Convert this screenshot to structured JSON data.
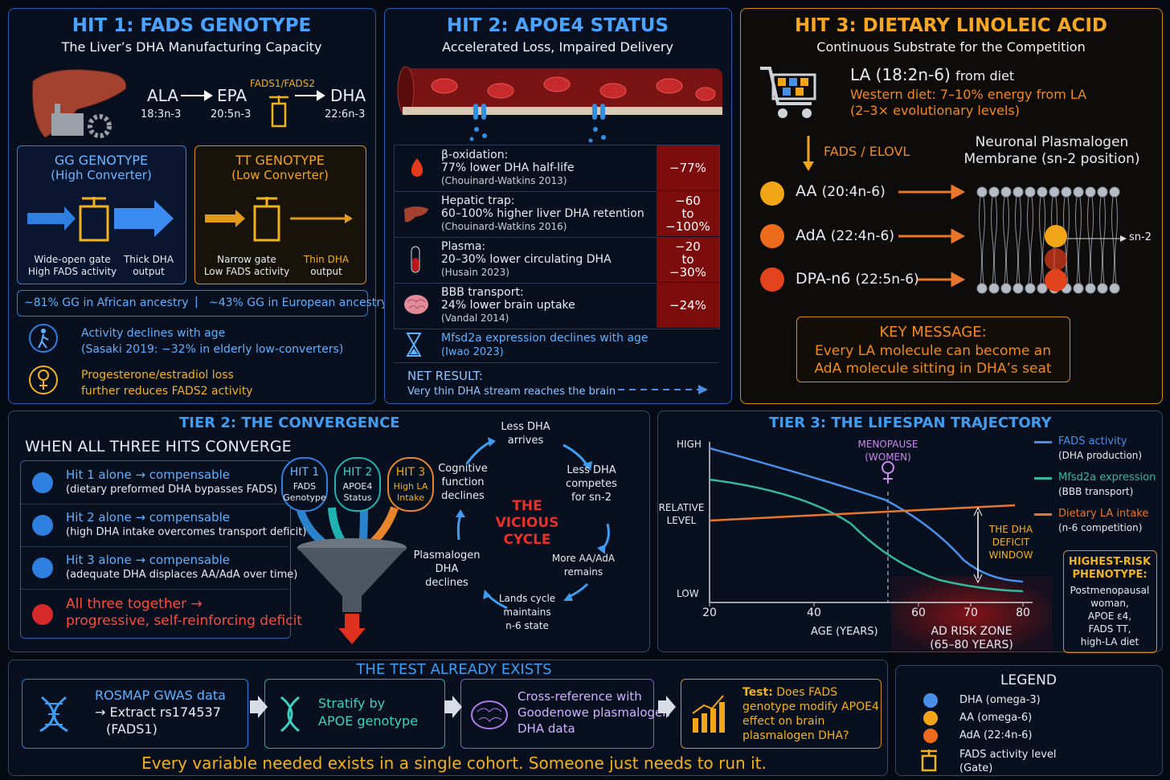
{
  "hit1": {
    "title": "HIT 1: FADS GENOTYPE",
    "subtitle": "The Liver’s DHA Manufacturing Capacity",
    "pathway": [
      {
        "name": "ALA",
        "formula": "18:3n-3"
      },
      {
        "name": "EPA",
        "formula": "20:5n-3"
      },
      {
        "name": "DHA",
        "formula": "22:6n-3"
      }
    ],
    "enzyme": "FADS1/FADS2",
    "genotypes": [
      {
        "title": "GG GENOTYPE",
        "subtitle": "(High Converter)",
        "gate": [
          "Wide-open gate",
          "High FADS activity"
        ],
        "output": [
          "Thick DHA",
          "output"
        ]
      },
      {
        "title": "TT GENOTYPE",
        "subtitle": "(Low Converter)",
        "gate": [
          "Narrow gate",
          "Low FADS activity"
        ],
        "output": [
          "Thin DHA",
          "output"
        ]
      }
    ],
    "ancestry": [
      "~81% GG in African ancestry",
      "~43% GG in European ancestry"
    ],
    "notes": [
      {
        "main": "Activity declines with age",
        "sub": "(Sasaki 2019: −32% in elderly low-converters)"
      },
      {
        "main": "Progesterone/estradiol loss",
        "sub": "further reduces FADS2 activity"
      }
    ]
  },
  "hit2": {
    "title": "HIT 2: APOE4 STATUS",
    "subtitle": "Accelerated Loss, Impaired Delivery",
    "rows": [
      {
        "label": "β-oxidation:",
        "desc": "77% lower DHA half-life",
        "cite": "(Chouinard-Watkins 2013)",
        "effect": [
          "−77%"
        ]
      },
      {
        "label": "Hepatic trap:",
        "desc": "60–100% higher liver DHA retention",
        "cite": "(Chouinard-Watkins 2016)",
        "effect": [
          "−60",
          "to",
          "−100%"
        ]
      },
      {
        "label": "Plasma:",
        "desc": "20–30% lower circulating DHA",
        "cite": "(Husain 2023)",
        "effect": [
          "−20",
          "to",
          "−30%"
        ]
      },
      {
        "label": "BBB transport:",
        "desc": "24% lower brain uptake",
        "cite": "(Vandal 2014)",
        "effect": [
          "−24%"
        ]
      }
    ],
    "note": {
      "main": "Mfsd2a expression declines with age",
      "sub": "(Iwao 2023)"
    },
    "net": {
      "label": "NET RESULT:",
      "text": "Very thin DHA stream reaches the brain"
    }
  },
  "hit3": {
    "title": "HIT 3: DIETARY LINOLEIC ACID",
    "subtitle": "Continuous Substrate for the Competition",
    "la": "LA (18:2n-6)",
    "la_source": "from diet",
    "western": [
      "Western diet: 7–10% energy from LA",
      "(2–3× evolutionary levels)"
    ],
    "enzyme": "FADS / ELOVL",
    "membrane": [
      "Neuronal Plasmalogen",
      "Membrane (sn-2 position)"
    ],
    "sn2": "sn-2",
    "products": [
      {
        "name": "AA",
        "formula": "(20:4n-6)",
        "color": "#f2a516"
      },
      {
        "name": "AdA",
        "formula": "(22:4n-6)",
        "color": "#ec6a1c"
      },
      {
        "name": "DPA-n6",
        "formula": "(22:5n-6)",
        "color": "#e2421c"
      }
    ],
    "key": {
      "title": "KEY MESSAGE:",
      "lines": [
        "Every LA molecule can become an",
        "AdA molecule sitting in DHA’s seat"
      ]
    }
  },
  "tier2": {
    "title": "TIER 2:  THE CONVERGENCE",
    "heading": "WHEN ALL THREE HITS CONVERGE",
    "items": [
      {
        "main": "Hit 1 alone → compensable",
        "sub": "(dietary preformed DHA bypasses FADS)"
      },
      {
        "main": "Hit 2 alone → compensable",
        "sub": "(high DHA intake overcomes transport deficit)"
      },
      {
        "main": "Hit 3 alone → compensable",
        "sub": "(adequate DHA displaces AA/AdA over time)"
      }
    ],
    "all_three": [
      "All three together →",
      "progressive, self-reinforcing deficit"
    ],
    "hits": [
      {
        "name": "HIT 1",
        "lines": [
          "FADS",
          "Genotype"
        ]
      },
      {
        "name": "HIT 2",
        "lines": [
          "APOE4",
          "Status"
        ]
      },
      {
        "name": "HIT 3",
        "lines": [
          "High LA",
          "Intake"
        ]
      }
    ],
    "cycle_title": [
      "THE",
      "VICIOUS",
      "CYCLE"
    ],
    "cycle": [
      [
        "Less DHA",
        "arrives"
      ],
      [
        "Less DHA",
        "competes",
        "for sn-2"
      ],
      [
        "More AA/AdA",
        "remains"
      ],
      [
        "Lands cycle",
        "maintains",
        "n-6 state"
      ],
      [
        "Plasmalogen",
        "DHA",
        "declines"
      ],
      [
        "Cognitive",
        "function",
        "declines"
      ]
    ]
  },
  "tier3": {
    "title": "TIER 3:  THE LIFESPAN TRAJECTORY",
    "y_labels": [
      "HIGH",
      "RELATIVE LEVEL",
      "LOW"
    ],
    "x_ticks": [
      20,
      40,
      60,
      70,
      80
    ],
    "x_label": "AGE (YEARS)",
    "menopause": [
      "MENOPAUSE",
      "(WOMEN)"
    ],
    "window": [
      "THE DHA",
      "DEFICIT",
      "WINDOW"
    ],
    "risk_zone": [
      "AD RISK ZONE",
      "(65–80 YEARS)"
    ],
    "series": [
      {
        "name": "FADS activity",
        "sub": "(DHA production)",
        "color": "#4a8fe7"
      },
      {
        "name": "Mfsd2a expression",
        "sub": "(BBB transport)",
        "color": "#36b99c"
      },
      {
        "name": "Dietary LA intake",
        "sub": "(n-6 competition)",
        "color": "#e8762c"
      }
    ],
    "phenotype": {
      "title": "HIGHEST-RISK PHENOTYPE:",
      "lines": [
        "Postmenopausal",
        "woman,",
        "APOE ε4,",
        "FADS TT,",
        "high-LA diet"
      ]
    }
  },
  "test": {
    "title": "THE TEST ALREADY EXISTS",
    "steps": [
      {
        "lines": [
          "ROSMAP GWAS data",
          "→ Extract rs174537",
          "(FADS1)"
        ]
      },
      {
        "lines": [
          "Stratify by",
          "APOE genotype"
        ]
      },
      {
        "lines": [
          "Cross-reference with",
          "Goodenowe plasmalogen",
          "DHA data"
        ]
      },
      {
        "lead": "Test:",
        "lines": [
          "Does FADS",
          "genotype modify APOE4",
          "effect on brain",
          "plasmalogen DHA?"
        ]
      }
    ],
    "footer": "Every variable needed exists in a single cohort. Someone just needs to run it."
  },
  "legend": {
    "title": "LEGEND",
    "items": [
      {
        "name": "DHA (omega-3)",
        "color": "#4a8fe7"
      },
      {
        "name": "AA (omega-6)",
        "color": "#f2a516"
      },
      {
        "name": "AdA (22:4n-6)",
        "color": "#ec6a1c"
      }
    ],
    "gate": [
      "FADS activity level",
      "(Gate)"
    ]
  }
}
